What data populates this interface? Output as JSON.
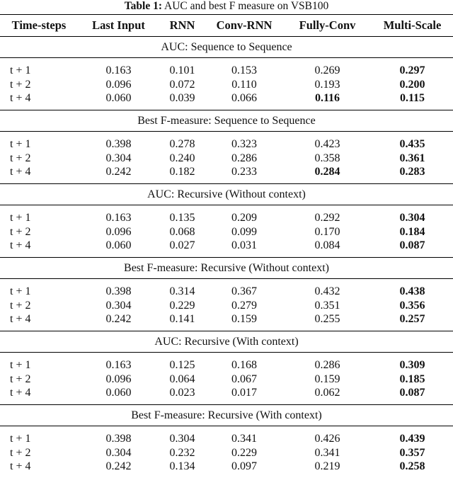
{
  "title": {
    "label": "Table 1:",
    "text": "AUC and best F measure on VSB100"
  },
  "table": {
    "header": [
      "Time-steps",
      "Last Input",
      "RNN",
      "Conv-RNN",
      "Fully-Conv",
      "Multi-Scale"
    ],
    "sections": [
      {
        "heading": "AUC: Sequence to Sequence",
        "rows": [
          [
            "t + 1",
            "0.163",
            "0.101",
            "0.153",
            "0.269",
            "0.297"
          ],
          [
            "t + 2",
            "0.096",
            "0.072",
            "0.110",
            "0.193",
            "0.200"
          ],
          [
            "t + 4",
            "0.060",
            "0.039",
            "0.066",
            "0.116",
            "0.115"
          ]
        ],
        "bold": [
          [
            5
          ],
          [
            5
          ],
          [
            4,
            5
          ]
        ]
      },
      {
        "heading": "Best F-measure: Sequence to Sequence",
        "rows": [
          [
            "t + 1",
            "0.398",
            "0.278",
            "0.323",
            "0.423",
            "0.435"
          ],
          [
            "t + 2",
            "0.304",
            "0.240",
            "0.286",
            "0.358",
            "0.361"
          ],
          [
            "t + 4",
            "0.242",
            "0.182",
            "0.233",
            "0.284",
            "0.283"
          ]
        ],
        "bold": [
          [
            5
          ],
          [
            5
          ],
          [
            4,
            5
          ]
        ]
      },
      {
        "heading": "AUC: Recursive (Without context)",
        "rows": [
          [
            "t + 1",
            "0.163",
            "0.135",
            "0.209",
            "0.292",
            "0.304"
          ],
          [
            "t + 2",
            "0.096",
            "0.068",
            "0.099",
            "0.170",
            "0.184"
          ],
          [
            "t + 4",
            "0.060",
            "0.027",
            "0.031",
            "0.084",
            "0.087"
          ]
        ],
        "bold": [
          [
            5
          ],
          [
            5
          ],
          [
            5
          ]
        ]
      },
      {
        "heading": "Best F-measure: Recursive (Without context)",
        "rows": [
          [
            "t + 1",
            "0.398",
            "0.314",
            "0.367",
            "0.432",
            "0.438"
          ],
          [
            "t + 2",
            "0.304",
            "0.229",
            "0.279",
            "0.351",
            "0.356"
          ],
          [
            "t + 4",
            "0.242",
            "0.141",
            "0.159",
            "0.255",
            "0.257"
          ]
        ],
        "bold": [
          [
            5
          ],
          [
            5
          ],
          [
            5
          ]
        ]
      },
      {
        "heading": "AUC: Recursive (With context)",
        "rows": [
          [
            "t + 1",
            "0.163",
            "0.125",
            "0.168",
            "0.286",
            "0.309"
          ],
          [
            "t + 2",
            "0.096",
            "0.064",
            "0.067",
            "0.159",
            "0.185"
          ],
          [
            "t + 4",
            "0.060",
            "0.023",
            "0.017",
            "0.062",
            "0.087"
          ]
        ],
        "bold": [
          [
            5
          ],
          [
            5
          ],
          [
            5
          ]
        ]
      },
      {
        "heading": "Best F-measure: Recursive (With context)",
        "rows": [
          [
            "t + 1",
            "0.398",
            "0.304",
            "0.341",
            "0.426",
            "0.439"
          ],
          [
            "t + 2",
            "0.304",
            "0.232",
            "0.229",
            "0.341",
            "0.357"
          ],
          [
            "t + 4",
            "0.242",
            "0.134",
            "0.097",
            "0.219",
            "0.258"
          ]
        ],
        "bold": [
          [
            5
          ],
          [
            5
          ],
          [
            5
          ]
        ]
      }
    ]
  }
}
